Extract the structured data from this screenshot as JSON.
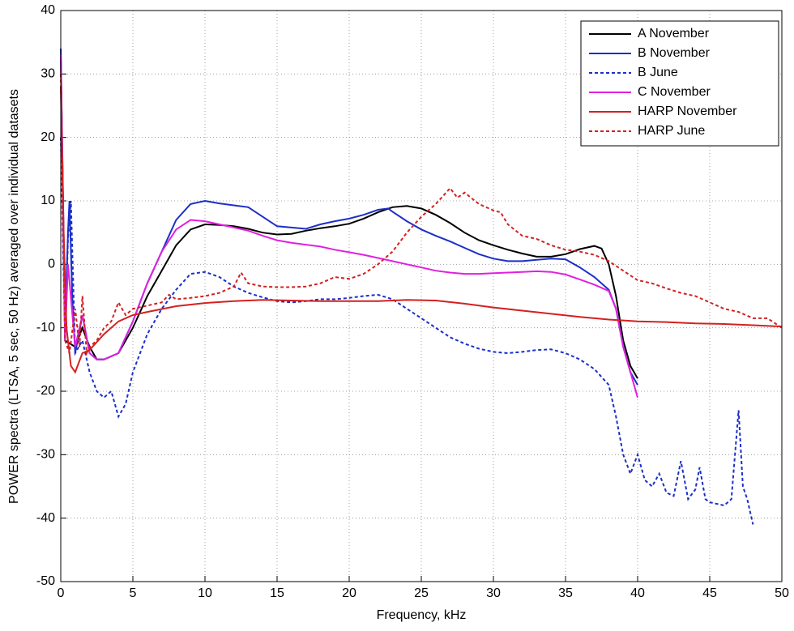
{
  "chart_data": {
    "type": "line",
    "x_label": "Frequency, kHz",
    "y_label": "POWER spectra (LTSA, 5 sec, 50 Hz) averaged over individual datasets",
    "xlim": [
      0,
      50
    ],
    "xticks": [
      0,
      5,
      10,
      15,
      20,
      25,
      30,
      35,
      40,
      45,
      50
    ],
    "ylim": [
      -50,
      40
    ],
    "yticks": [
      -50,
      -40,
      -30,
      -20,
      -10,
      0,
      10,
      20,
      30,
      40
    ],
    "grid": true,
    "legend": "upper right",
    "series": [
      {
        "name": "A November",
        "color": "#000000",
        "dashed": false,
        "x": [
          0,
          0.3,
          1,
          1.5,
          2,
          2.5,
          3,
          4,
          5,
          6,
          7,
          8,
          9,
          10,
          11,
          12,
          13,
          14,
          15,
          16,
          17,
          18,
          19,
          20,
          21,
          22,
          23,
          24,
          25,
          26,
          27,
          28,
          29,
          30,
          31,
          32,
          33,
          34,
          35,
          36,
          37,
          37.5,
          38,
          38.5,
          39,
          39.5,
          40
        ],
        "values": [
          33,
          -12,
          -13,
          -10,
          -13,
          -15,
          -15,
          -14,
          -10,
          -5,
          -1,
          3,
          5.5,
          6.3,
          6.2,
          6,
          5.6,
          5,
          4.7,
          4.8,
          5.3,
          5.7,
          6,
          6.4,
          7.2,
          8.2,
          9,
          9.2,
          8.8,
          7.8,
          6.5,
          5,
          3.8,
          3,
          2.3,
          1.7,
          1.2,
          1.2,
          1.6,
          2.4,
          2.9,
          2.5,
          0,
          -5,
          -12,
          -16,
          -18
        ]
      },
      {
        "name": "B November",
        "color": "#1c2fc8",
        "dashed": false,
        "x": [
          0,
          0.3,
          0.5,
          0.6,
          0.8,
          1,
          1.5,
          2,
          2.5,
          3,
          4,
          5,
          6,
          7,
          8,
          9,
          10,
          11,
          12,
          13,
          14,
          15,
          16,
          17,
          18,
          19,
          20,
          21,
          22,
          22.7,
          23,
          24,
          25,
          26,
          27,
          28,
          29,
          30,
          31,
          32,
          33,
          34,
          35,
          36,
          37,
          38,
          38.5,
          39,
          39.5,
          40
        ],
        "values": [
          34,
          -10,
          5,
          10,
          -5,
          -14,
          -8,
          -14,
          -15,
          -15,
          -14,
          -9,
          -3,
          2,
          7,
          9.5,
          10,
          9.6,
          9.3,
          9,
          7.5,
          6,
          5.8,
          5.6,
          6.3,
          6.8,
          7.2,
          7.8,
          8.6,
          8.8,
          8.3,
          6.8,
          5.5,
          4.5,
          3.6,
          2.6,
          1.6,
          0.9,
          0.5,
          0.5,
          0.7,
          0.9,
          0.8,
          -0.5,
          -2,
          -4,
          -7,
          -13,
          -17,
          -19
        ]
      },
      {
        "name": "B June",
        "color": "#1c2fc8",
        "dashed": true,
        "x": [
          0,
          0.3,
          0.5,
          0.7,
          1,
          1.5,
          2,
          2.5,
          3,
          3.5,
          4,
          4.5,
          5,
          6,
          7,
          8,
          9,
          10,
          11,
          12,
          13,
          14,
          15,
          16,
          17,
          18,
          19,
          20,
          21,
          22,
          23,
          24,
          25,
          26,
          27,
          28,
          29,
          30,
          31,
          32,
          33,
          34,
          35,
          36,
          37,
          38,
          38.5,
          39,
          39.5,
          40,
          40.5,
          41,
          41.5,
          42,
          42.5,
          43,
          43.5,
          44,
          44.3,
          44.7,
          45,
          46,
          46.5,
          47,
          47.3,
          47.6,
          48
        ],
        "values": [
          20,
          -12,
          4,
          10,
          -14,
          -12,
          -17,
          -20,
          -21,
          -20,
          -24,
          -22,
          -17,
          -11,
          -7,
          -4,
          -1.5,
          -1.2,
          -2,
          -3.5,
          -4.5,
          -5.2,
          -5.8,
          -6,
          -5.8,
          -5.5,
          -5.5,
          -5.3,
          -5,
          -4.8,
          -5.5,
          -7,
          -8.5,
          -10,
          -11.5,
          -12.5,
          -13.3,
          -13.8,
          -14,
          -13.8,
          -13.5,
          -13.4,
          -14,
          -15,
          -16.5,
          -19,
          -24,
          -30,
          -33,
          -30,
          -34,
          -35,
          -33,
          -36,
          -36.5,
          -31,
          -37,
          -35.5,
          -32,
          -37,
          -37.5,
          -38,
          -37,
          -23,
          -35,
          -37,
          -41
        ]
      },
      {
        "name": "C November",
        "color": "#e020e0",
        "dashed": false,
        "x": [
          0,
          0.3,
          0.5,
          1,
          1.5,
          2,
          2.5,
          3,
          4,
          5,
          6,
          7,
          8,
          9,
          10,
          11,
          12,
          13,
          14,
          15,
          16,
          17,
          18,
          19,
          20,
          21,
          22,
          23,
          24,
          25,
          26,
          27,
          28,
          29,
          30,
          31,
          32,
          33,
          34,
          35,
          36,
          37,
          38,
          38.5,
          39,
          39.5,
          40
        ],
        "values": [
          33,
          -12,
          0,
          -13,
          -8,
          -14,
          -15,
          -15,
          -14,
          -9,
          -3,
          2,
          5.5,
          7,
          6.8,
          6.3,
          5.8,
          5.3,
          4.5,
          3.8,
          3.4,
          3.1,
          2.8,
          2.3,
          1.9,
          1.5,
          1,
          0.5,
          0,
          -0.5,
          -1,
          -1.3,
          -1.5,
          -1.5,
          -1.4,
          -1.3,
          -1.2,
          -1.1,
          -1.2,
          -1.6,
          -2.4,
          -3.2,
          -4.2,
          -7,
          -13,
          -17,
          -21
        ]
      },
      {
        "name": "HARP November",
        "color": "#d42020",
        "dashed": false,
        "x": [
          0,
          0.2,
          0.4,
          0.7,
          1,
          1.5,
          2,
          3,
          4,
          5,
          6,
          8,
          10,
          12,
          14,
          16,
          18,
          20,
          22,
          24,
          26,
          28,
          30,
          32,
          34,
          36,
          38,
          40,
          42,
          44,
          46,
          48,
          50
        ],
        "values": [
          28,
          5,
          -10,
          -16,
          -17,
          -14,
          -13.5,
          -11,
          -9,
          -8,
          -7.5,
          -6.6,
          -6.1,
          -5.8,
          -5.6,
          -5.7,
          -5.8,
          -5.8,
          -5.8,
          -5.6,
          -5.7,
          -6.2,
          -6.8,
          -7.3,
          -7.8,
          -8.3,
          -8.7,
          -9,
          -9.1,
          -9.3,
          -9.4,
          -9.6,
          -9.8
        ]
      },
      {
        "name": "HARP June",
        "color": "#d42020",
        "dashed": true,
        "x": [
          0,
          0.3,
          0.6,
          1,
          1.3,
          1.5,
          1.8,
          2,
          2.5,
          3,
          3.5,
          4,
          4.5,
          5,
          6,
          7,
          7.5,
          8,
          9,
          10,
          11,
          12,
          12.5,
          13,
          14,
          15,
          16,
          17,
          18,
          19,
          20,
          21,
          22,
          23,
          24,
          25,
          26,
          27,
          27.5,
          28,
          29,
          30,
          30.5,
          31,
          32,
          33,
          34,
          35,
          36,
          37,
          38,
          39,
          40,
          41,
          42,
          43,
          44,
          45,
          46,
          47,
          48,
          49,
          50
        ],
        "values": [
          30,
          -12,
          -14,
          -7,
          -13,
          -5,
          -14,
          -13,
          -12,
          -10,
          -9,
          -6,
          -8,
          -7,
          -6.5,
          -6,
          -4.8,
          -5.5,
          -5.3,
          -5,
          -4.5,
          -3.5,
          -1.3,
          -3,
          -3.5,
          -3.6,
          -3.6,
          -3.5,
          -3,
          -2,
          -2.3,
          -1.5,
          0,
          2,
          5,
          7.5,
          9.5,
          12,
          10.5,
          11.3,
          9.5,
          8.5,
          8.2,
          6.3,
          4.5,
          4,
          3,
          2.3,
          2,
          1.5,
          0.5,
          -1,
          -2.5,
          -3,
          -3.8,
          -4.5,
          -5,
          -6,
          -7,
          -7.5,
          -8.5,
          -8.5,
          -10
        ]
      }
    ]
  }
}
